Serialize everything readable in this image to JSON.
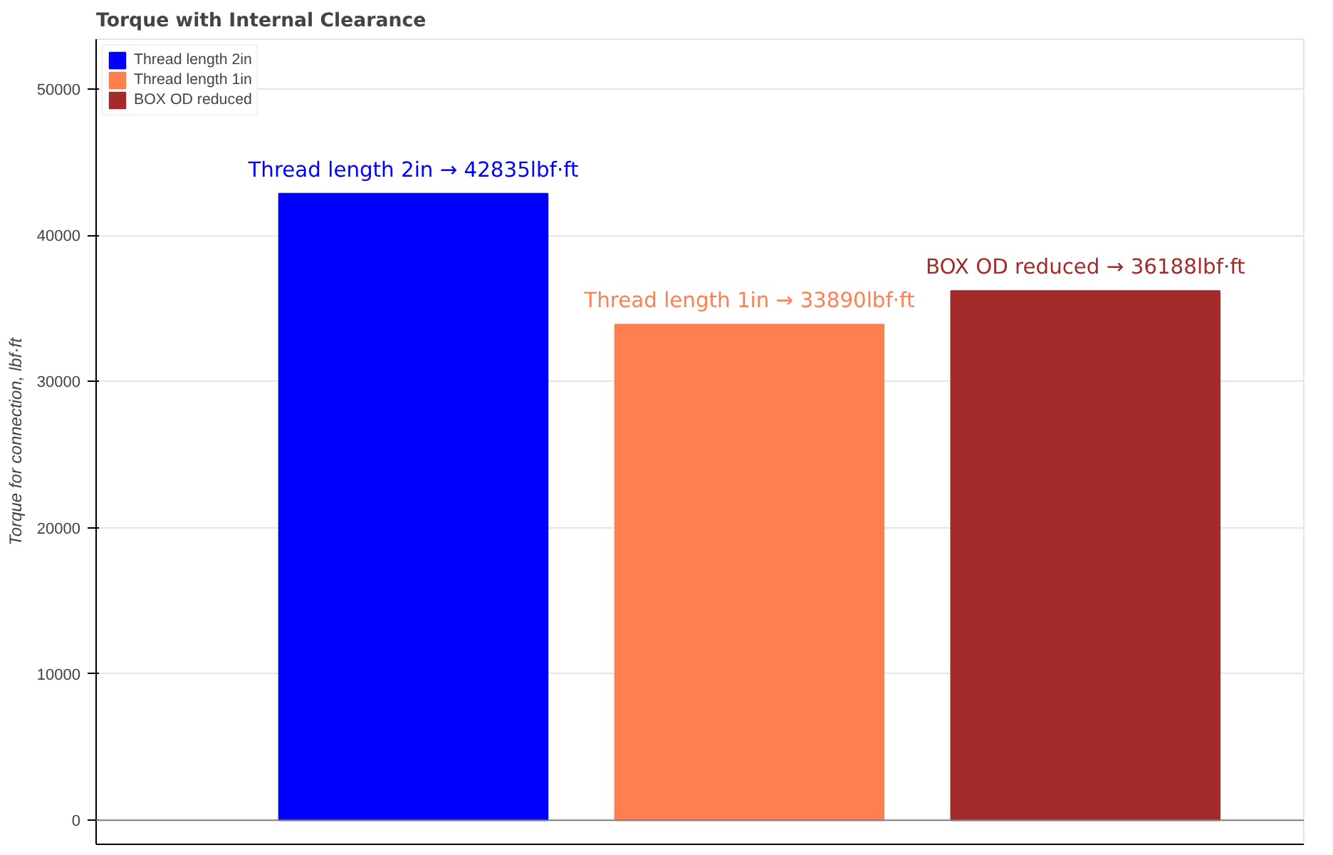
{
  "chart_data": {
    "type": "bar",
    "title": "Torque with Internal Clearance",
    "ylabel": "Torque for connection, lbf·ft",
    "categories": [
      null,
      null,
      null
    ],
    "series": [
      {
        "name": "Thread length 2in",
        "color": "#0000ff",
        "values": [
          42835,
          null,
          null
        ],
        "value_labels": [
          "Thread length 2in → 42835lbf·ft",
          null,
          null
        ]
      },
      {
        "name": "Thread length 1in",
        "color": "#ff7f50",
        "values": [
          null,
          33890,
          null
        ],
        "value_labels": [
          null,
          "Thread length 1in → 33890lbf·ft",
          null
        ]
      },
      {
        "name": "BOX OD reduced",
        "color": "#a52a2a",
        "values": [
          null,
          null,
          36188
        ],
        "value_labels": [
          null,
          null,
          "BOX OD reduced → 36188lbf·ft"
        ]
      }
    ],
    "ylim": [
      -1650,
      53400
    ],
    "yticks": [
      0,
      10000,
      20000,
      30000,
      40000,
      50000
    ],
    "ref_lines": [
      {
        "axis": "y",
        "value": 0,
        "color": "#808080"
      }
    ],
    "grid": "y",
    "legend": "top left",
    "tick_labels": "y"
  }
}
